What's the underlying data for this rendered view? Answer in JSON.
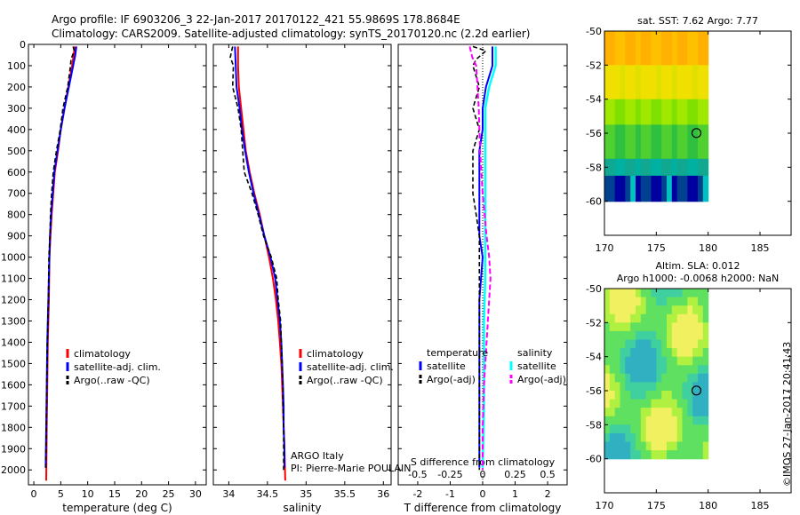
{
  "header": {
    "line1": "Argo profile: IF 6903206_3 22-Jan-2017 20170122_421 55.9869S 178.8684E",
    "line2": "Climatology: CARS2009. Satellite-adjusted climatology: synTS_20170120.nc (2.2d earlier)"
  },
  "credit": "ARGO Italy",
  "pi": "PI: Pierre-Marie POULAIN",
  "footer_stamp": "©IMOS 27-Jan-2017 20:41:43",
  "colors": {
    "climatology": "#ff0000",
    "satellite": "#0000ff",
    "argo": "#000000",
    "sal_satellite": "#00ffff",
    "sal_argo": "#ff00ff"
  },
  "chart_data": [
    {
      "type": "line",
      "xlabel": "temperature (deg C)",
      "xlim": [
        -1,
        32
      ],
      "xticks": [
        0,
        5,
        10,
        15,
        20,
        25,
        30
      ],
      "ylim": [
        2070,
        0
      ],
      "yticks": [
        0,
        100,
        200,
        300,
        400,
        500,
        600,
        700,
        800,
        900,
        1000,
        1100,
        1200,
        1300,
        1400,
        1500,
        1600,
        1700,
        1800,
        1900,
        2000
      ],
      "legend": [
        "climatology",
        "satellite-adj. clim.",
        "Argo(..raw -QC)"
      ],
      "series": [
        {
          "name": "climatology",
          "points": [
            [
              7.6,
              10
            ],
            [
              7.4,
              50
            ],
            [
              7.1,
              100
            ],
            [
              6.4,
              200
            ],
            [
              5.7,
              300
            ],
            [
              5.0,
              400
            ],
            [
              4.5,
              500
            ],
            [
              3.9,
              600
            ],
            [
              3.6,
              700
            ],
            [
              3.3,
              800
            ],
            [
              3.1,
              900
            ],
            [
              2.9,
              1000
            ],
            [
              2.8,
              1200
            ],
            [
              2.6,
              1400
            ],
            [
              2.5,
              1600
            ],
            [
              2.4,
              1800
            ],
            [
              2.3,
              2050
            ]
          ]
        },
        {
          "name": "satellite-adj. clim.",
          "points": [
            [
              7.9,
              10
            ],
            [
              7.7,
              50
            ],
            [
              7.3,
              100
            ],
            [
              6.5,
              200
            ],
            [
              5.7,
              300
            ],
            [
              5.0,
              400
            ],
            [
              4.4,
              500
            ],
            [
              3.8,
              600
            ],
            [
              3.5,
              700
            ],
            [
              3.2,
              800
            ],
            [
              3.0,
              900
            ],
            [
              2.9,
              1000
            ],
            [
              2.7,
              1200
            ],
            [
              2.5,
              1400
            ],
            [
              2.4,
              1600
            ],
            [
              2.3,
              1800
            ],
            [
              2.2,
              1990
            ]
          ]
        },
        {
          "name": "Argo(..raw -QC)",
          "points": [
            [
              7.3,
              10
            ],
            [
              7.5,
              30
            ],
            [
              6.9,
              70
            ],
            [
              6.8,
              100
            ],
            [
              6.3,
              200
            ],
            [
              5.4,
              300
            ],
            [
              4.9,
              400
            ],
            [
              4.2,
              500
            ],
            [
              3.6,
              600
            ],
            [
              3.3,
              700
            ],
            [
              3.1,
              800
            ],
            [
              3.0,
              900
            ],
            [
              2.8,
              1000
            ],
            [
              2.7,
              1200
            ],
            [
              2.5,
              1400
            ],
            [
              2.4,
              1600
            ],
            [
              2.3,
              1800
            ],
            [
              2.2,
              2000
            ]
          ]
        }
      ]
    },
    {
      "type": "line",
      "xlabel": "salinity",
      "xlim": [
        33.8,
        36.1
      ],
      "xticks": [
        34,
        34.5,
        35,
        35.5,
        36
      ],
      "ylim": [
        2070,
        0
      ],
      "legend": [
        "climatology",
        "satellite-adj. clim.",
        "Argo(..raw -QC)"
      ],
      "series": [
        {
          "name": "climatology",
          "points": [
            [
              34.12,
              10
            ],
            [
              34.12,
              100
            ],
            [
              34.13,
              200
            ],
            [
              34.16,
              300
            ],
            [
              34.19,
              400
            ],
            [
              34.22,
              500
            ],
            [
              34.27,
              600
            ],
            [
              34.33,
              700
            ],
            [
              34.4,
              800
            ],
            [
              34.46,
              900
            ],
            [
              34.52,
              1000
            ],
            [
              34.57,
              1100
            ],
            [
              34.61,
              1200
            ],
            [
              34.64,
              1300
            ],
            [
              34.66,
              1400
            ],
            [
              34.68,
              1500
            ],
            [
              34.69,
              1600
            ],
            [
              34.7,
              1700
            ],
            [
              34.71,
              1800
            ],
            [
              34.72,
              1900
            ],
            [
              34.73,
              2050
            ]
          ]
        },
        {
          "name": "satellite-adj. clim.",
          "points": [
            [
              34.08,
              10
            ],
            [
              34.09,
              100
            ],
            [
              34.1,
              200
            ],
            [
              34.14,
              300
            ],
            [
              34.17,
              400
            ],
            [
              34.21,
              500
            ],
            [
              34.26,
              600
            ],
            [
              34.32,
              700
            ],
            [
              34.39,
              800
            ],
            [
              34.46,
              900
            ],
            [
              34.54,
              1000
            ],
            [
              34.6,
              1100
            ],
            [
              34.63,
              1200
            ],
            [
              34.66,
              1300
            ],
            [
              34.68,
              1400
            ],
            [
              34.69,
              1500
            ],
            [
              34.7,
              1600
            ],
            [
              34.71,
              1700
            ],
            [
              34.71,
              1800
            ],
            [
              34.72,
              1900
            ],
            [
              34.72,
              1990
            ]
          ]
        },
        {
          "name": "Argo(..raw -QC)",
          "points": [
            [
              34.05,
              10
            ],
            [
              34.02,
              60
            ],
            [
              34.06,
              100
            ],
            [
              34.05,
              200
            ],
            [
              34.12,
              300
            ],
            [
              34.16,
              400
            ],
            [
              34.18,
              500
            ],
            [
              34.2,
              600
            ],
            [
              34.3,
              700
            ],
            [
              34.38,
              800
            ],
            [
              34.45,
              900
            ],
            [
              34.55,
              1000
            ],
            [
              34.62,
              1100
            ],
            [
              34.64,
              1200
            ],
            [
              34.67,
              1300
            ],
            [
              34.68,
              1400
            ],
            [
              34.69,
              1500
            ],
            [
              34.7,
              1600
            ],
            [
              34.7,
              1700
            ],
            [
              34.71,
              1800
            ],
            [
              34.71,
              1900
            ],
            [
              34.71,
              2000
            ]
          ]
        }
      ]
    },
    {
      "type": "line",
      "xlabel": "T difference from climatology",
      "xlabel_top": "S difference from climatology",
      "xlim": [
        -2.6,
        2.6
      ],
      "xticks": [
        -2,
        -1,
        0,
        1,
        2
      ],
      "xticks_top": [
        "-0.5",
        "-0.25",
        "0",
        "0.25",
        "0.5"
      ],
      "ylim": [
        2070,
        0
      ],
      "legend_titles": [
        "temperature",
        "salinity"
      ],
      "legend": [
        "satellite",
        "Argo(-adj)",
        "satellite",
        "Argo(-adj)"
      ],
      "series": [
        {
          "name": "temperature satellite",
          "points": [
            [
              0.3,
              10
            ],
            [
              0.3,
              100
            ],
            [
              0.1,
              200
            ],
            [
              0.0,
              300
            ],
            [
              0.0,
              400
            ],
            [
              -0.1,
              500
            ],
            [
              -0.1,
              600
            ],
            [
              -0.1,
              700
            ],
            [
              -0.1,
              800
            ],
            [
              -0.1,
              900
            ],
            [
              0.0,
              1000
            ],
            [
              -0.1,
              1200
            ],
            [
              -0.1,
              1400
            ],
            [
              -0.1,
              1600
            ],
            [
              -0.1,
              1800
            ],
            [
              -0.1,
              1990
            ]
          ]
        },
        {
          "name": "temperature Argo(-adj)",
          "points": [
            [
              -0.3,
              10
            ],
            [
              0.1,
              30
            ],
            [
              -0.2,
              70
            ],
            [
              -0.3,
              100
            ],
            [
              -0.1,
              200
            ],
            [
              -0.3,
              300
            ],
            [
              -0.1,
              400
            ],
            [
              -0.3,
              500
            ],
            [
              -0.3,
              600
            ],
            [
              -0.3,
              700
            ],
            [
              -0.2,
              800
            ],
            [
              -0.1,
              900
            ],
            [
              -0.1,
              1000
            ],
            [
              -0.1,
              1200
            ],
            [
              -0.1,
              1400
            ],
            [
              -0.1,
              1600
            ],
            [
              -0.1,
              1800
            ],
            [
              -0.1,
              2000
            ]
          ]
        },
        {
          "name": "salinity satellite",
          "points": [
            [
              0.1,
              10
            ],
            [
              0.1,
              100
            ],
            [
              0.05,
              200
            ],
            [
              0.02,
              300
            ],
            [
              0.02,
              500
            ],
            [
              0.02,
              700
            ],
            [
              0.02,
              900
            ],
            [
              0.02,
              1100
            ],
            [
              0.01,
              1300
            ],
            [
              0.01,
              1500
            ],
            [
              0.01,
              1700
            ],
            [
              0.0,
              1990
            ]
          ]
        },
        {
          "name": "salinity Argo(-adj)",
          "points": [
            [
              -0.1,
              10
            ],
            [
              -0.08,
              60
            ],
            [
              -0.05,
              100
            ],
            [
              -0.03,
              300
            ],
            [
              -0.02,
              500
            ],
            [
              0.0,
              700
            ],
            [
              0.03,
              900
            ],
            [
              0.05,
              1000
            ],
            [
              0.06,
              1100
            ],
            [
              0.05,
              1200
            ],
            [
              0.03,
              1400
            ],
            [
              0.01,
              1600
            ],
            [
              0.0,
              1800
            ],
            [
              0.0,
              2000
            ]
          ]
        }
      ]
    },
    {
      "type": "heatmap",
      "title": "sat. SST: 7.62 Argo: 7.77",
      "xlim": [
        170,
        188
      ],
      "ylim": [
        -62,
        -50
      ],
      "xticks": [
        170,
        175,
        180,
        185
      ],
      "yticks": [
        -50,
        -52,
        -54,
        -56,
        -58,
        -60
      ],
      "marker": {
        "lon": 178.87,
        "lat": -55.99
      }
    },
    {
      "type": "heatmap",
      "title": "Altim. SLA: 0.012",
      "subtitle": "Argo h1000: -0.0068 h2000: NaN",
      "xlim": [
        170,
        188
      ],
      "ylim": [
        -62,
        -50
      ],
      "xticks": [
        170,
        175,
        180,
        185
      ],
      "yticks": [
        -50,
        -52,
        -54,
        -56,
        -58,
        -60
      ],
      "marker": {
        "lon": 178.87,
        "lat": -55.99
      }
    }
  ]
}
